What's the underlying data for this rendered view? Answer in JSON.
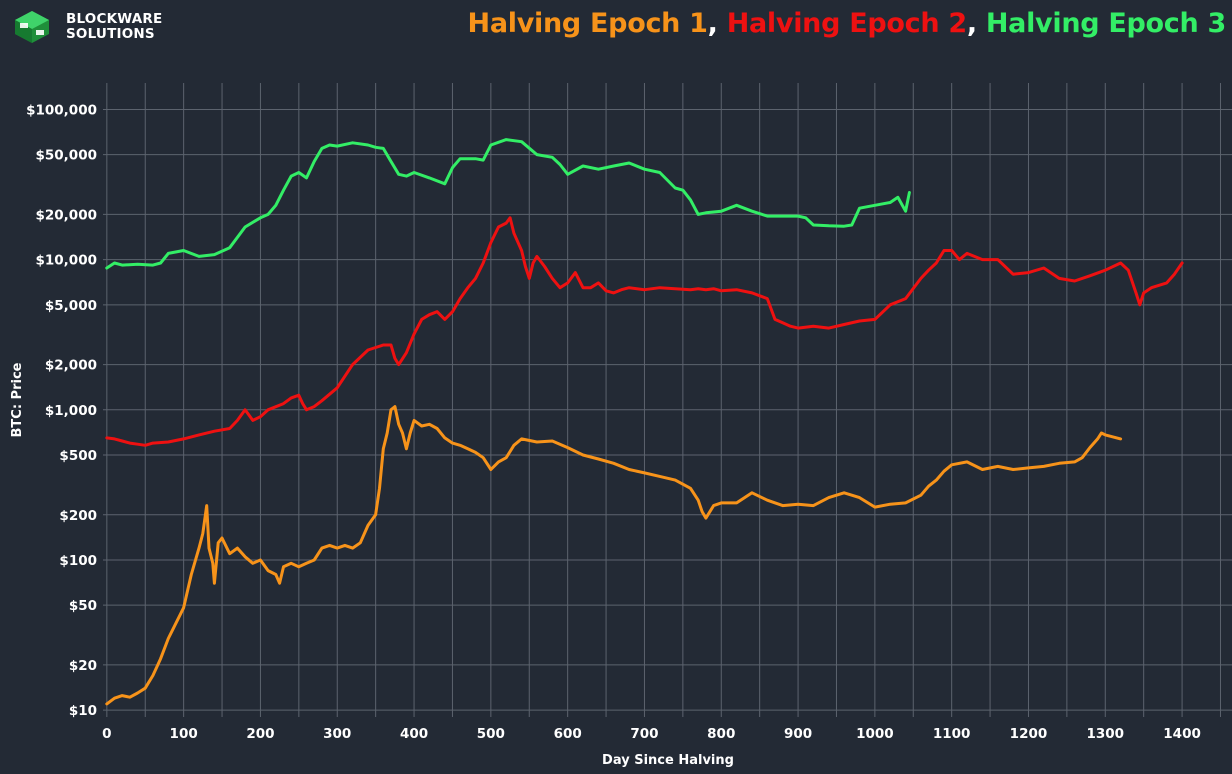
{
  "brand": {
    "line1": "BLOCKWARE",
    "line2": "SOLUTIONS"
  },
  "title": {
    "parts": [
      {
        "text": "Halving Epoch 1",
        "color": "#f7931a"
      },
      {
        "text": ", ",
        "color": "#ffffff"
      },
      {
        "text": "Halving Epoch 2",
        "color": "#ee1111"
      },
      {
        "text": ", ",
        "color": "#ffffff"
      },
      {
        "text": "Halving Epoch 3",
        "color": "#33ee66"
      }
    ]
  },
  "chart_data": {
    "type": "line",
    "xlabel": "Day Since Halving",
    "ylabel": "BTC: Price",
    "xlim": [
      -5,
      1465
    ],
    "ylim": [
      9,
      150000
    ],
    "yscale": "log",
    "grid": true,
    "x_ticks": [
      0,
      100,
      200,
      300,
      400,
      500,
      600,
      700,
      800,
      900,
      1000,
      1100,
      1200,
      1300,
      1400
    ],
    "y_ticks": [
      {
        "value": 10,
        "label": "$10"
      },
      {
        "value": 20,
        "label": "$20"
      },
      {
        "value": 50,
        "label": "$50"
      },
      {
        "value": 100,
        "label": "$100"
      },
      {
        "value": 200,
        "label": "$200"
      },
      {
        "value": 500,
        "label": "$500"
      },
      {
        "value": 1000,
        "label": "$1,000"
      },
      {
        "value": 2000,
        "label": "$2,000"
      },
      {
        "value": 5000,
        "label": "$5,000"
      },
      {
        "value": 10000,
        "label": "$10,000"
      },
      {
        "value": 20000,
        "label": "$20,000"
      },
      {
        "value": 50000,
        "label": "$50,000"
      },
      {
        "value": 100000,
        "label": "$100,000"
      }
    ],
    "series": [
      {
        "name": "Halving Epoch 1",
        "color": "#f7931a",
        "x": [
          0,
          10,
          20,
          30,
          40,
          50,
          60,
          70,
          80,
          90,
          100,
          110,
          120,
          125,
          130,
          133,
          138,
          140,
          145,
          150,
          160,
          170,
          180,
          190,
          200,
          210,
          220,
          225,
          230,
          240,
          250,
          260,
          270,
          280,
          290,
          300,
          310,
          320,
          330,
          340,
          350,
          355,
          360,
          365,
          370,
          375,
          380,
          385,
          390,
          395,
          400,
          410,
          420,
          430,
          440,
          450,
          460,
          470,
          480,
          490,
          500,
          510,
          520,
          530,
          540,
          560,
          580,
          600,
          620,
          640,
          660,
          680,
          700,
          720,
          740,
          760,
          770,
          775,
          780,
          790,
          800,
          820,
          840,
          860,
          880,
          900,
          920,
          940,
          960,
          980,
          1000,
          1020,
          1040,
          1060,
          1070,
          1080,
          1090,
          1100,
          1120,
          1140,
          1160,
          1180,
          1200,
          1220,
          1240,
          1260,
          1270,
          1280,
          1290,
          1295,
          1300,
          1310,
          1320
        ],
        "values": [
          11,
          12,
          12.5,
          12.2,
          13,
          14,
          17,
          22,
          30,
          38,
          48,
          80,
          120,
          150,
          230,
          120,
          95,
          70,
          130,
          140,
          110,
          120,
          105,
          95,
          100,
          85,
          80,
          70,
          90,
          95,
          90,
          95,
          100,
          120,
          125,
          120,
          125,
          120,
          130,
          170,
          200,
          300,
          550,
          700,
          1000,
          1050,
          800,
          700,
          550,
          700,
          850,
          780,
          800,
          750,
          650,
          600,
          580,
          550,
          520,
          480,
          400,
          450,
          480,
          580,
          640,
          610,
          620,
          560,
          500,
          470,
          440,
          400,
          380,
          360,
          340,
          300,
          250,
          210,
          190,
          230,
          240,
          240,
          280,
          250,
          230,
          235,
          230,
          260,
          280,
          260,
          225,
          235,
          240,
          270,
          310,
          340,
          390,
          430,
          450,
          400,
          420,
          400,
          410,
          420,
          440,
          450,
          480,
          560,
          640,
          700,
          680,
          660,
          640
        ]
      },
      {
        "name": "Halving Epoch 2",
        "color": "#ee1111",
        "x": [
          0,
          10,
          20,
          30,
          40,
          50,
          60,
          80,
          100,
          120,
          140,
          160,
          170,
          180,
          190,
          200,
          210,
          230,
          240,
          250,
          255,
          260,
          270,
          280,
          300,
          320,
          340,
          360,
          370,
          375,
          380,
          390,
          400,
          410,
          420,
          430,
          440,
          450,
          460,
          470,
          480,
          490,
          500,
          510,
          520,
          525,
          530,
          540,
          545,
          550,
          555,
          560,
          570,
          580,
          590,
          600,
          610,
          620,
          630,
          640,
          650,
          660,
          670,
          680,
          700,
          720,
          740,
          760,
          770,
          780,
          790,
          800,
          820,
          840,
          860,
          870,
          880,
          890,
          900,
          920,
          940,
          960,
          980,
          1000,
          1020,
          1040,
          1060,
          1070,
          1080,
          1090,
          1100,
          1110,
          1120,
          1140,
          1160,
          1180,
          1200,
          1220,
          1240,
          1260,
          1280,
          1300,
          1320,
          1330,
          1340,
          1345,
          1350,
          1360,
          1380,
          1390,
          1400
        ],
        "values": [
          650,
          640,
          620,
          600,
          590,
          580,
          600,
          610,
          640,
          680,
          720,
          750,
          850,
          1000,
          850,
          900,
          1000,
          1100,
          1200,
          1250,
          1100,
          1000,
          1050,
          1150,
          1400,
          2000,
          2500,
          2700,
          2700,
          2200,
          2000,
          2400,
          3200,
          4000,
          4300,
          4500,
          4000,
          4500,
          5500,
          6500,
          7500,
          9500,
          13000,
          16500,
          17500,
          19000,
          15000,
          11500,
          9000,
          7500,
          9500,
          10500,
          9000,
          7500,
          6500,
          7000,
          8200,
          6500,
          6500,
          7000,
          6200,
          6000,
          6300,
          6500,
          6300,
          6500,
          6400,
          6300,
          6400,
          6300,
          6400,
          6200,
          6300,
          6000,
          5500,
          4000,
          3800,
          3600,
          3500,
          3600,
          3500,
          3700,
          3900,
          4000,
          5000,
          5500,
          7500,
          8500,
          9500,
          11500,
          11500,
          10000,
          11000,
          10000,
          10000,
          8000,
          8200,
          8800,
          7500,
          7200,
          7800,
          8500,
          9500,
          8500,
          6000,
          5000,
          6000,
          6500,
          7000,
          8000,
          9500
        ]
      },
      {
        "name": "Halving Epoch 3",
        "color": "#33ee66",
        "x": [
          0,
          10,
          20,
          40,
          60,
          70,
          80,
          100,
          120,
          140,
          160,
          180,
          200,
          210,
          220,
          230,
          240,
          250,
          260,
          270,
          280,
          290,
          300,
          320,
          340,
          350,
          360,
          370,
          380,
          390,
          400,
          420,
          440,
          450,
          460,
          480,
          490,
          500,
          520,
          540,
          560,
          580,
          590,
          600,
          620,
          640,
          660,
          680,
          700,
          720,
          740,
          750,
          760,
          770,
          780,
          800,
          820,
          840,
          860,
          880,
          900,
          910,
          920,
          940,
          960,
          970,
          980,
          1000,
          1020,
          1030,
          1040,
          1045
        ],
        "values": [
          8800,
          9500,
          9200,
          9300,
          9200,
          9500,
          11000,
          11500,
          10500,
          10800,
          12000,
          16500,
          19000,
          20000,
          23000,
          29000,
          36000,
          38000,
          35000,
          45000,
          55000,
          58000,
          57000,
          60000,
          58000,
          56000,
          55000,
          45000,
          37000,
          36000,
          38000,
          35000,
          32000,
          41000,
          47000,
          47000,
          46000,
          58000,
          63000,
          61000,
          50000,
          48000,
          43000,
          37000,
          42000,
          40000,
          42000,
          44000,
          40000,
          38000,
          30000,
          29000,
          25000,
          20000,
          20500,
          21000,
          23000,
          21000,
          19500,
          19500,
          19500,
          19000,
          17000,
          16800,
          16700,
          17000,
          22000,
          23000,
          24000,
          26000,
          21000,
          28000
        ]
      }
    ]
  }
}
